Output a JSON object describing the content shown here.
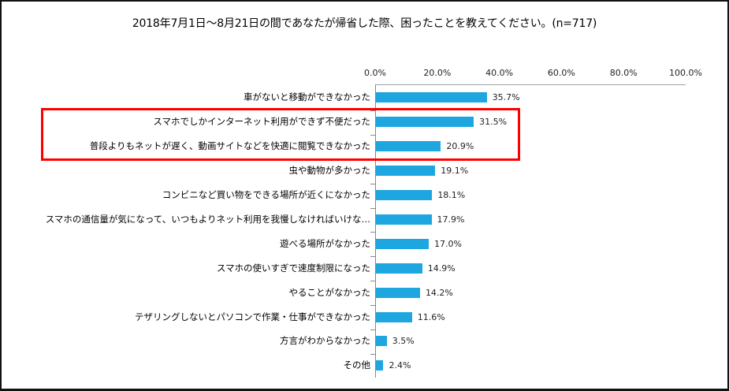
{
  "chart_data": {
    "type": "bar",
    "orientation": "horizontal",
    "title": "2018年7月1日～8月21日の間であなたが帰省した際、困ったことを教えてください。(n=717)",
    "xlabel": "",
    "ylabel": "",
    "xlim": [
      0,
      100
    ],
    "x_tick_labels": [
      "0.0%",
      "20.0%",
      "40.0%",
      "60.0%",
      "80.0%",
      "100.0%"
    ],
    "grid": false,
    "legend": null,
    "bar_color": "#1ea6e0",
    "highlight_color": "#ff0000",
    "highlighted_categories": [
      1,
      2
    ],
    "categories": [
      "車がないと移動ができなかった",
      "スマホでしかインターネット利用ができず不便だった",
      "普段よりもネットが遅く、動画サイトなどを快適に閲覧できなかった",
      "虫や動物が多かった",
      "コンビニなど買い物をできる場所が近くになかった",
      "スマホの通信量が気になって、いつもよりネット利用を我慢しなければいけな…",
      "遊べる場所がなかった",
      "スマホの使いすぎで速度制限になった",
      "やることがなかった",
      "テザリングしないとパソコンで作業・仕事ができなかった",
      "方言がわからなかった",
      "その他"
    ],
    "values": [
      35.7,
      31.5,
      20.9,
      19.1,
      18.1,
      17.9,
      17.0,
      14.9,
      14.2,
      11.6,
      3.5,
      2.4
    ],
    "value_labels": [
      "35.7%",
      "31.5%",
      "20.9%",
      "19.1%",
      "18.1%",
      "17.9%",
      "17.0%",
      "14.9%",
      "14.2%",
      "11.6%",
      "3.5%",
      "2.4%"
    ]
  }
}
